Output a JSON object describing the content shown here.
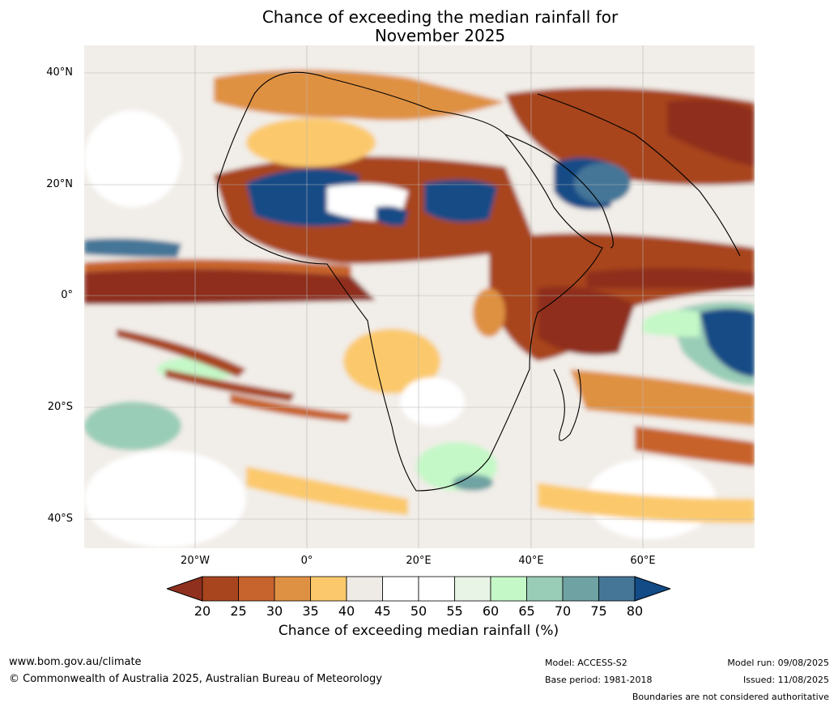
{
  "title_line1": "Chance of exceeding the median rainfall for",
  "title_line2": "November 2025",
  "map": {
    "lat_labels": [
      "40°N",
      "20°N",
      "0°",
      "20°S",
      "40°S"
    ],
    "lon_labels": [
      "20°W",
      "0°",
      "20°E",
      "40°E",
      "60°E"
    ]
  },
  "colorbar": {
    "label": "Chance of exceeding median rainfall (%)",
    "ticks": [
      "20",
      "25",
      "30",
      "35",
      "40",
      "45",
      "50",
      "55",
      "60",
      "65",
      "70",
      "75",
      "80"
    ],
    "colors": [
      "#8f2f1e",
      "#a8451f",
      "#c7632c",
      "#df9143",
      "#fbc96c",
      "#eeeae6",
      "#ffffff",
      "#ffffff",
      "#e8f5e6",
      "#c5f8c7",
      "#9acdb7",
      "#6fa3a3",
      "#457698",
      "#124b86"
    ]
  },
  "footer": {
    "website": "www.bom.gov.au/climate",
    "copyright": "© Commonwealth of Australia 2025, Australian Bureau of Meteorology",
    "model": "Model: ACCESS-S2",
    "base_period": "Base period: 1981-2018",
    "model_run": "Model run: 09/08/2025",
    "issued": "Issued: 11/08/2025",
    "disclaimer": "Boundaries are not considered authoritative"
  }
}
